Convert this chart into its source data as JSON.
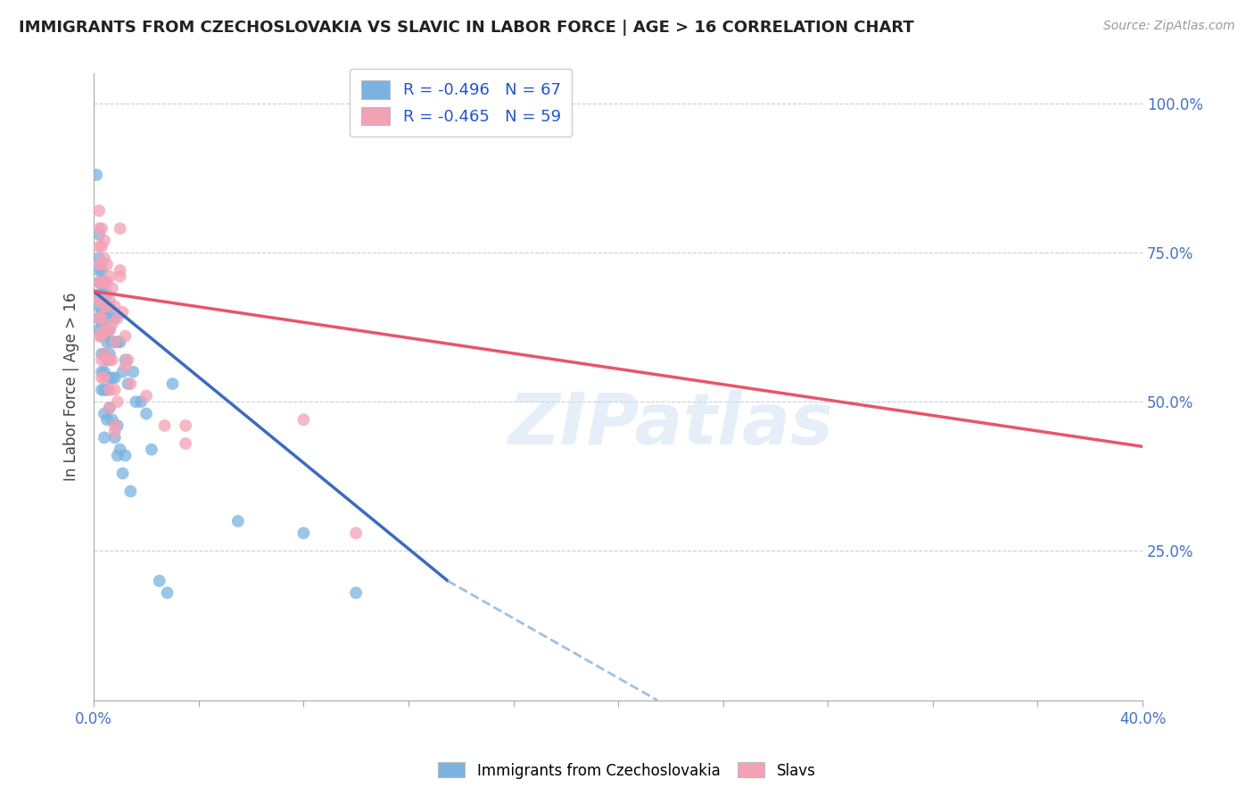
{
  "title": "IMMIGRANTS FROM CZECHOSLOVAKIA VS SLAVIC IN LABOR FORCE | AGE > 16 CORRELATION CHART",
  "source": "Source: ZipAtlas.com",
  "ylabel": "In Labor Force | Age > 16",
  "xmin": 0.0,
  "xmax": 0.4,
  "ymin": 0.0,
  "ymax": 1.05,
  "ytick_vals": [
    0.0,
    0.25,
    0.5,
    0.75,
    1.0
  ],
  "xtick_vals": [
    0.0,
    0.04,
    0.08,
    0.12,
    0.16,
    0.2,
    0.24,
    0.28,
    0.32,
    0.36,
    0.4
  ],
  "color_blue": "#7ab3e0",
  "color_pink": "#f4a0b5",
  "line_blue": "#3a6bbf",
  "line_pink": "#e8556a",
  "line_dash": "#a0c0e8",
  "watermark": "ZIPatlas",
  "blue_scatter": [
    [
      0.001,
      0.88
    ],
    [
      0.002,
      0.78
    ],
    [
      0.002,
      0.74
    ],
    [
      0.002,
      0.72
    ],
    [
      0.002,
      0.7
    ],
    [
      0.002,
      0.68
    ],
    [
      0.002,
      0.66
    ],
    [
      0.002,
      0.64
    ],
    [
      0.002,
      0.62
    ],
    [
      0.003,
      0.72
    ],
    [
      0.003,
      0.7
    ],
    [
      0.003,
      0.68
    ],
    [
      0.003,
      0.65
    ],
    [
      0.003,
      0.63
    ],
    [
      0.003,
      0.61
    ],
    [
      0.003,
      0.58
    ],
    [
      0.003,
      0.55
    ],
    [
      0.003,
      0.52
    ],
    [
      0.004,
      0.7
    ],
    [
      0.004,
      0.68
    ],
    [
      0.004,
      0.64
    ],
    [
      0.004,
      0.61
    ],
    [
      0.004,
      0.58
    ],
    [
      0.004,
      0.55
    ],
    [
      0.004,
      0.52
    ],
    [
      0.004,
      0.48
    ],
    [
      0.004,
      0.44
    ],
    [
      0.005,
      0.68
    ],
    [
      0.005,
      0.64
    ],
    [
      0.005,
      0.6
    ],
    [
      0.005,
      0.57
    ],
    [
      0.005,
      0.52
    ],
    [
      0.005,
      0.47
    ],
    [
      0.006,
      0.66
    ],
    [
      0.006,
      0.62
    ],
    [
      0.006,
      0.58
    ],
    [
      0.006,
      0.54
    ],
    [
      0.006,
      0.49
    ],
    [
      0.007,
      0.65
    ],
    [
      0.007,
      0.6
    ],
    [
      0.007,
      0.54
    ],
    [
      0.007,
      0.47
    ],
    [
      0.008,
      0.64
    ],
    [
      0.008,
      0.6
    ],
    [
      0.008,
      0.54
    ],
    [
      0.008,
      0.44
    ],
    [
      0.009,
      0.6
    ],
    [
      0.009,
      0.46
    ],
    [
      0.009,
      0.41
    ],
    [
      0.01,
      0.6
    ],
    [
      0.01,
      0.42
    ],
    [
      0.011,
      0.55
    ],
    [
      0.011,
      0.38
    ],
    [
      0.012,
      0.57
    ],
    [
      0.012,
      0.41
    ],
    [
      0.013,
      0.53
    ],
    [
      0.014,
      0.35
    ],
    [
      0.015,
      0.55
    ],
    [
      0.016,
      0.5
    ],
    [
      0.018,
      0.5
    ],
    [
      0.02,
      0.48
    ],
    [
      0.022,
      0.42
    ],
    [
      0.025,
      0.2
    ],
    [
      0.028,
      0.18
    ],
    [
      0.03,
      0.53
    ],
    [
      0.055,
      0.3
    ],
    [
      0.08,
      0.28
    ],
    [
      0.1,
      0.18
    ]
  ],
  "pink_scatter": [
    [
      0.002,
      0.82
    ],
    [
      0.002,
      0.79
    ],
    [
      0.002,
      0.76
    ],
    [
      0.002,
      0.73
    ],
    [
      0.002,
      0.7
    ],
    [
      0.002,
      0.67
    ],
    [
      0.002,
      0.64
    ],
    [
      0.002,
      0.61
    ],
    [
      0.003,
      0.79
    ],
    [
      0.003,
      0.76
    ],
    [
      0.003,
      0.73
    ],
    [
      0.003,
      0.7
    ],
    [
      0.003,
      0.67
    ],
    [
      0.003,
      0.64
    ],
    [
      0.003,
      0.61
    ],
    [
      0.003,
      0.57
    ],
    [
      0.004,
      0.77
    ],
    [
      0.004,
      0.74
    ],
    [
      0.004,
      0.7
    ],
    [
      0.004,
      0.66
    ],
    [
      0.004,
      0.62
    ],
    [
      0.004,
      0.58
    ],
    [
      0.004,
      0.54
    ],
    [
      0.005,
      0.73
    ],
    [
      0.005,
      0.7
    ],
    [
      0.005,
      0.66
    ],
    [
      0.005,
      0.62
    ],
    [
      0.005,
      0.57
    ],
    [
      0.006,
      0.71
    ],
    [
      0.006,
      0.67
    ],
    [
      0.006,
      0.62
    ],
    [
      0.006,
      0.57
    ],
    [
      0.006,
      0.52
    ],
    [
      0.007,
      0.69
    ],
    [
      0.007,
      0.63
    ],
    [
      0.007,
      0.57
    ],
    [
      0.008,
      0.66
    ],
    [
      0.008,
      0.6
    ],
    [
      0.008,
      0.52
    ],
    [
      0.008,
      0.46
    ],
    [
      0.009,
      0.64
    ],
    [
      0.009,
      0.5
    ],
    [
      0.01,
      0.79
    ],
    [
      0.01,
      0.71
    ],
    [
      0.011,
      0.65
    ],
    [
      0.012,
      0.61
    ],
    [
      0.012,
      0.56
    ],
    [
      0.013,
      0.57
    ],
    [
      0.014,
      0.53
    ],
    [
      0.02,
      0.51
    ],
    [
      0.027,
      0.46
    ],
    [
      0.035,
      0.46
    ],
    [
      0.035,
      0.43
    ],
    [
      0.08,
      0.47
    ],
    [
      0.1,
      0.28
    ],
    [
      0.01,
      0.72
    ],
    [
      0.006,
      0.49
    ],
    [
      0.008,
      0.45
    ],
    [
      0.003,
      0.54
    ]
  ],
  "blue_line": [
    [
      0.0,
      0.685
    ],
    [
      0.135,
      0.2
    ]
  ],
  "blue_line_dash": [
    [
      0.135,
      0.2
    ],
    [
      0.215,
      0.0
    ]
  ],
  "pink_line": [
    [
      0.0,
      0.685
    ],
    [
      0.4,
      0.425
    ]
  ]
}
